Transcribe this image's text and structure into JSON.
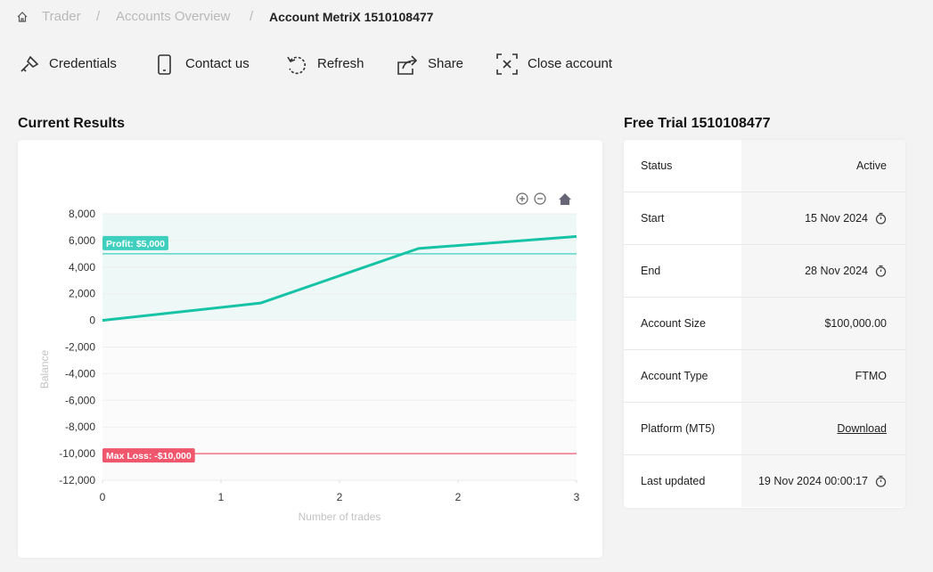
{
  "breadcrumb": [
    "Trader",
    "Accounts Overview",
    "Account MetriX 1510108477"
  ],
  "toolbar": [
    "Credentials",
    "Contact us",
    "Refresh",
    "Share",
    "Close account"
  ],
  "results_title": "Current Results",
  "chart_data": {
    "type": "line",
    "color": "#17c3a6",
    "x": [
      0,
      1,
      2,
      3
    ],
    "values": [
      0,
      1300,
      5400,
      6300
    ],
    "xlim": [
      0,
      3
    ],
    "xticks": [
      0,
      {
        "value": 0.75,
        "label": "1"
      },
      {
        "value": 1.5,
        "label": "2"
      },
      {
        "value": 2.25,
        "label": "2"
      },
      3
    ],
    "ylim": [
      -12000,
      8000
    ],
    "yticks": [
      {
        "value": 8000,
        "label": "8,000"
      },
      {
        "value": 6000,
        "label": "6,000"
      },
      {
        "value": 4000,
        "label": "4,000"
      },
      {
        "value": 2000,
        "label": "2,000"
      },
      0,
      {
        "value": -2000,
        "label": "-2,000"
      },
      {
        "value": -4000,
        "label": "-4,000"
      },
      {
        "value": -6000,
        "label": "-6,000"
      },
      {
        "value": -8000,
        "label": "-8,000"
      },
      {
        "value": -10000,
        "label": "-10,000"
      },
      {
        "value": -12000,
        "label": "-12,000"
      }
    ],
    "xlabel": "Number of trades",
    "ylabel": "Balance",
    "grid": true,
    "annotations": [
      {
        "value": 5000,
        "label": "Profit: $5,000",
        "color": "#3fcfbf"
      },
      {
        "value": -10000,
        "label": "Max Loss: -$10,000",
        "color": "#f0566c"
      }
    ]
  },
  "panel": {
    "title": "Free Trial 1510108477",
    "rows": [
      [
        "Status",
        "Active"
      ],
      [
        "Start",
        "15 Nov 2024"
      ],
      [
        "End",
        "28 Nov 2024"
      ],
      [
        "Account Size",
        "$100,000.00"
      ],
      [
        "Account Type",
        "FTMO"
      ],
      [
        "Platform (MT5)",
        "Download"
      ],
      [
        "Last updated",
        "19 Nov 2024 00:00:17"
      ]
    ]
  }
}
